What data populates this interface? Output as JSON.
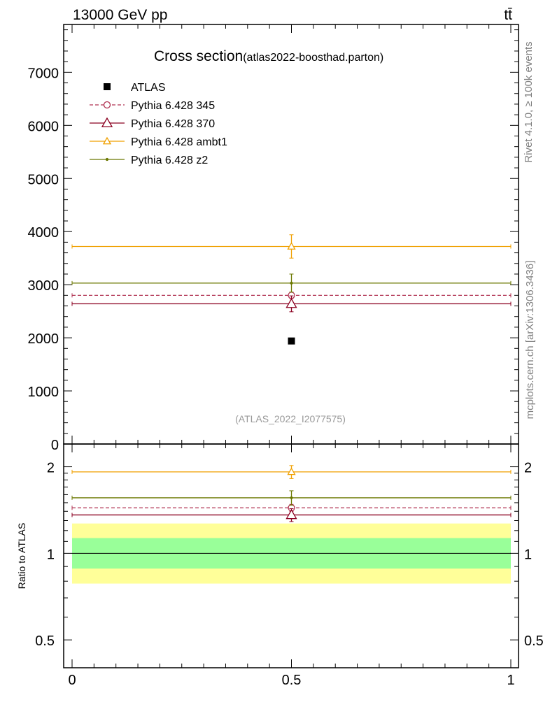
{
  "header": {
    "left": "13000 GeV pp",
    "right": "tt̄"
  },
  "side_labels": {
    "rivet": "Rivet 4.1.0, ≥ 100k events",
    "mcplots": "mcplots.cern.ch [arXiv:1306.3436]"
  },
  "chart_data": {
    "type": "scatter",
    "title": "Cross section",
    "subtitle": "(atlas2022-boosthad.parton)",
    "watermark": "(ATLAS_2022_I2077575)",
    "x": [
      0.5
    ],
    "xlim": [
      0,
      1
    ],
    "x_ticks": [
      "0",
      "0.5",
      "1"
    ],
    "main": {
      "ylim": [
        0,
        7900
      ],
      "y_ticks": [
        "0",
        "1000",
        "2000",
        "3000",
        "4000",
        "5000",
        "6000",
        "7000"
      ],
      "data": {
        "name": "ATLAS",
        "y": 1940,
        "color": "#000000"
      },
      "series": [
        {
          "name": "Pythia 6.428 345",
          "y": 2800,
          "err": 60,
          "color": "#b03050",
          "style": "dashed",
          "marker": "circle"
        },
        {
          "name": "Pythia 6.428 370",
          "y": 2640,
          "err": 150,
          "color": "#8b0020",
          "style": "solid",
          "marker": "triangle-large"
        },
        {
          "name": "Pythia 6.428 ambt1",
          "y": 3720,
          "err": 220,
          "color": "#f0a000",
          "style": "solid",
          "marker": "triangle"
        },
        {
          "name": "Pythia 6.428 z2",
          "y": 3030,
          "err": 170,
          "color": "#6b7800",
          "style": "solid",
          "marker": "dot"
        }
      ]
    },
    "ratio": {
      "ylabel": "Ratio to ATLAS",
      "ylim": [
        0.4,
        2.4
      ],
      "scale": "log",
      "y_ticks": [
        "0.5",
        "1",
        "2"
      ],
      "bands": {
        "inner": [
          0.885,
          1.13
        ],
        "outer": [
          0.785,
          1.27
        ],
        "inner_color": "#99ff99",
        "outer_color": "#ffff99"
      },
      "series": [
        {
          "name": "Pythia 6.428 345",
          "y": 1.44,
          "err": 0.04
        },
        {
          "name": "Pythia 6.428 370",
          "y": 1.36,
          "err": 0.07
        },
        {
          "name": "Pythia 6.428 ambt1",
          "y": 1.92,
          "err": 0.1
        },
        {
          "name": "Pythia 6.428 z2",
          "y": 1.56,
          "err": 0.09
        }
      ]
    }
  }
}
